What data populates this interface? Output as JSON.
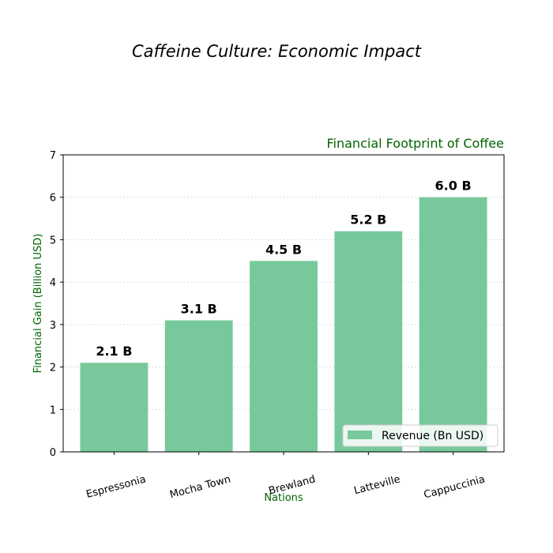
{
  "chart_data": {
    "type": "bar",
    "title": "Caffeine Culture: Economic Impact",
    "subtitle": "Financial Footprint of Coffee",
    "xlabel": "Nations",
    "ylabel": "Financial Gain (Billion USD)",
    "categories": [
      "Espressonia",
      "Mocha Town",
      "Brewland",
      "Latteville",
      "Cappuccinia"
    ],
    "series": [
      {
        "name": "Revenue (Bn USD)",
        "values": [
          2.1,
          3.1,
          4.5,
          5.2,
          6.0
        ],
        "color": "#77c99b"
      }
    ],
    "data_labels": [
      "2.1 B",
      "3.1 B",
      "4.5 B",
      "5.2 B",
      "6.0 B"
    ],
    "ylim": [
      0,
      7
    ],
    "yticks": [
      "0",
      "1",
      "2",
      "3",
      "4",
      "5",
      "6",
      "7"
    ],
    "grid": "horizontal dotted",
    "legend_position": "lower-right",
    "colors": {
      "label": "#006400",
      "grid": "#d0d0d0"
    }
  }
}
